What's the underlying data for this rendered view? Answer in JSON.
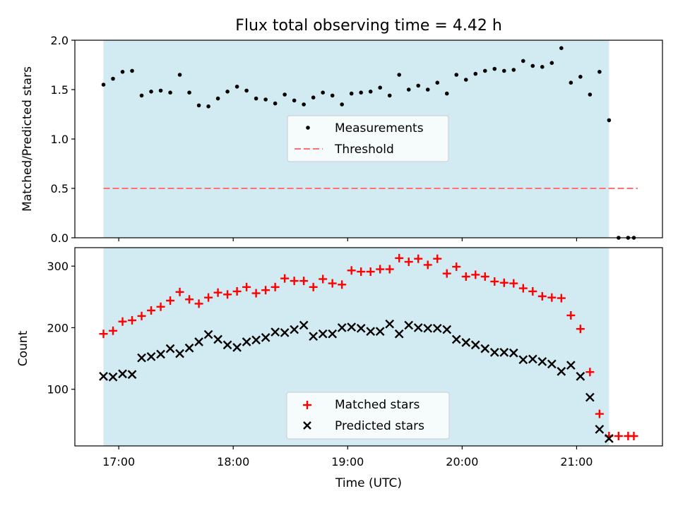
{
  "figure_title": "Flux total observing time = 4.42 h",
  "colors": {
    "shade": "#add8e6",
    "measurement": "#000000",
    "threshold": "#ff7070",
    "matched": "#ff0000",
    "predicted": "#000000"
  },
  "chart_data": [
    {
      "type": "scatter",
      "title": "Flux total observing time = 4.42 h",
      "xlabel": "",
      "ylabel": "Matched/Predicted stars",
      "xlim": [
        "16:37",
        "21:45"
      ],
      "ylim": [
        0,
        2.0
      ],
      "yticks": [
        0.0,
        0.5,
        1.0,
        1.5,
        2.0
      ],
      "ytick_labels": [
        "0.0",
        "0.5",
        "1.0",
        "1.5",
        "2.0"
      ],
      "shaded_span": [
        "16:52",
        "21:17"
      ],
      "legend_position": "center",
      "threshold": {
        "name": "Threshold",
        "y": 0.5,
        "x_range": [
          "16:52",
          "21:32"
        ]
      },
      "series": [
        {
          "name": "Measurements",
          "x": [
            "16:52",
            "16:57",
            "17:02",
            "17:07",
            "17:12",
            "17:17",
            "17:22",
            "17:27",
            "17:32",
            "17:37",
            "17:42",
            "17:47",
            "17:52",
            "17:57",
            "18:02",
            "18:07",
            "18:12",
            "18:17",
            "18:22",
            "18:27",
            "18:32",
            "18:37",
            "18:42",
            "18:47",
            "18:52",
            "18:57",
            "19:02",
            "19:07",
            "19:12",
            "19:17",
            "19:22",
            "19:27",
            "19:32",
            "19:37",
            "19:42",
            "19:47",
            "19:52",
            "19:57",
            "20:02",
            "20:07",
            "20:12",
            "20:17",
            "20:22",
            "20:27",
            "20:32",
            "20:37",
            "20:42",
            "20:47",
            "20:52",
            "20:57",
            "21:02",
            "21:07",
            "21:12",
            "21:17",
            "21:22",
            "21:27",
            "21:30"
          ],
          "y": [
            1.55,
            1.61,
            1.68,
            1.69,
            1.44,
            1.48,
            1.49,
            1.47,
            1.65,
            1.47,
            1.34,
            1.33,
            1.41,
            1.48,
            1.53,
            1.49,
            1.41,
            1.4,
            1.36,
            1.45,
            1.39,
            1.35,
            1.42,
            1.47,
            1.44,
            1.35,
            1.46,
            1.47,
            1.48,
            1.52,
            1.44,
            1.65,
            1.5,
            1.54,
            1.5,
            1.57,
            1.46,
            1.65,
            1.6,
            1.66,
            1.69,
            1.71,
            1.69,
            1.7,
            1.79,
            1.74,
            1.73,
            1.77,
            1.92,
            1.57,
            1.63,
            1.45,
            1.68,
            1.19,
            0.0,
            0.0,
            0.0
          ]
        }
      ]
    },
    {
      "type": "scatter",
      "title": "",
      "xlabel": "Time (UTC)",
      "ylabel": "Count",
      "xlim": [
        "16:37",
        "21:45"
      ],
      "ylim": [
        8,
        330
      ],
      "yticks": [
        100,
        200,
        300
      ],
      "ytick_labels": [
        "100",
        "200",
        "300"
      ],
      "xticks": [
        "17:00",
        "18:00",
        "19:00",
        "20:00",
        "21:00"
      ],
      "shaded_span": [
        "16:52",
        "21:17"
      ],
      "legend_position": "lower center",
      "series": [
        {
          "name": "Matched stars",
          "marker": "plus",
          "x": [
            "16:52",
            "16:57",
            "17:02",
            "17:07",
            "17:12",
            "17:17",
            "17:22",
            "17:27",
            "17:32",
            "17:37",
            "17:42",
            "17:47",
            "17:52",
            "17:57",
            "18:02",
            "18:07",
            "18:12",
            "18:17",
            "18:22",
            "18:27",
            "18:32",
            "18:37",
            "18:42",
            "18:47",
            "18:52",
            "18:57",
            "19:02",
            "19:07",
            "19:12",
            "19:17",
            "19:22",
            "19:27",
            "19:32",
            "19:37",
            "19:42",
            "19:47",
            "19:52",
            "19:57",
            "20:02",
            "20:07",
            "20:12",
            "20:17",
            "20:22",
            "20:27",
            "20:32",
            "20:37",
            "20:42",
            "20:47",
            "20:52",
            "20:57",
            "21:02",
            "21:07",
            "21:12",
            "21:17",
            "21:22",
            "21:27",
            "21:30"
          ],
          "y": [
            190,
            195,
            210,
            212,
            219,
            228,
            234,
            244,
            258,
            246,
            239,
            249,
            257,
            254,
            259,
            266,
            256,
            261,
            266,
            280,
            276,
            276,
            266,
            279,
            272,
            270,
            293,
            291,
            291,
            295,
            295,
            313,
            307,
            312,
            302,
            312,
            288,
            299,
            283,
            286,
            283,
            275,
            273,
            272,
            264,
            259,
            251,
            249,
            248,
            220,
            198,
            128,
            60,
            24,
            24,
            24,
            24
          ]
        },
        {
          "name": "Predicted stars",
          "marker": "x",
          "x": [
            "16:52",
            "16:57",
            "17:02",
            "17:07",
            "17:12",
            "17:17",
            "17:22",
            "17:27",
            "17:32",
            "17:37",
            "17:42",
            "17:47",
            "17:52",
            "17:57",
            "18:02",
            "18:07",
            "18:12",
            "18:17",
            "18:22",
            "18:27",
            "18:32",
            "18:37",
            "18:42",
            "18:47",
            "18:52",
            "18:57",
            "19:02",
            "19:07",
            "19:12",
            "19:17",
            "19:22",
            "19:27",
            "19:32",
            "19:37",
            "19:42",
            "19:47",
            "19:52",
            "19:57",
            "20:02",
            "20:07",
            "20:12",
            "20:17",
            "20:22",
            "20:27",
            "20:32",
            "20:37",
            "20:42",
            "20:47",
            "20:52",
            "20:57",
            "21:02",
            "21:07",
            "21:12",
            "21:17"
          ],
          "y": [
            121,
            120,
            125,
            124,
            151,
            153,
            157,
            166,
            158,
            167,
            177,
            189,
            181,
            172,
            168,
            177,
            180,
            184,
            193,
            192,
            197,
            204,
            186,
            190,
            190,
            200,
            201,
            199,
            194,
            194,
            206,
            190,
            204,
            200,
            199,
            199,
            197,
            181,
            176,
            172,
            166,
            160,
            160,
            159,
            148,
            149,
            145,
            141,
            129,
            139,
            121,
            87,
            35,
            20
          ]
        }
      ]
    }
  ]
}
